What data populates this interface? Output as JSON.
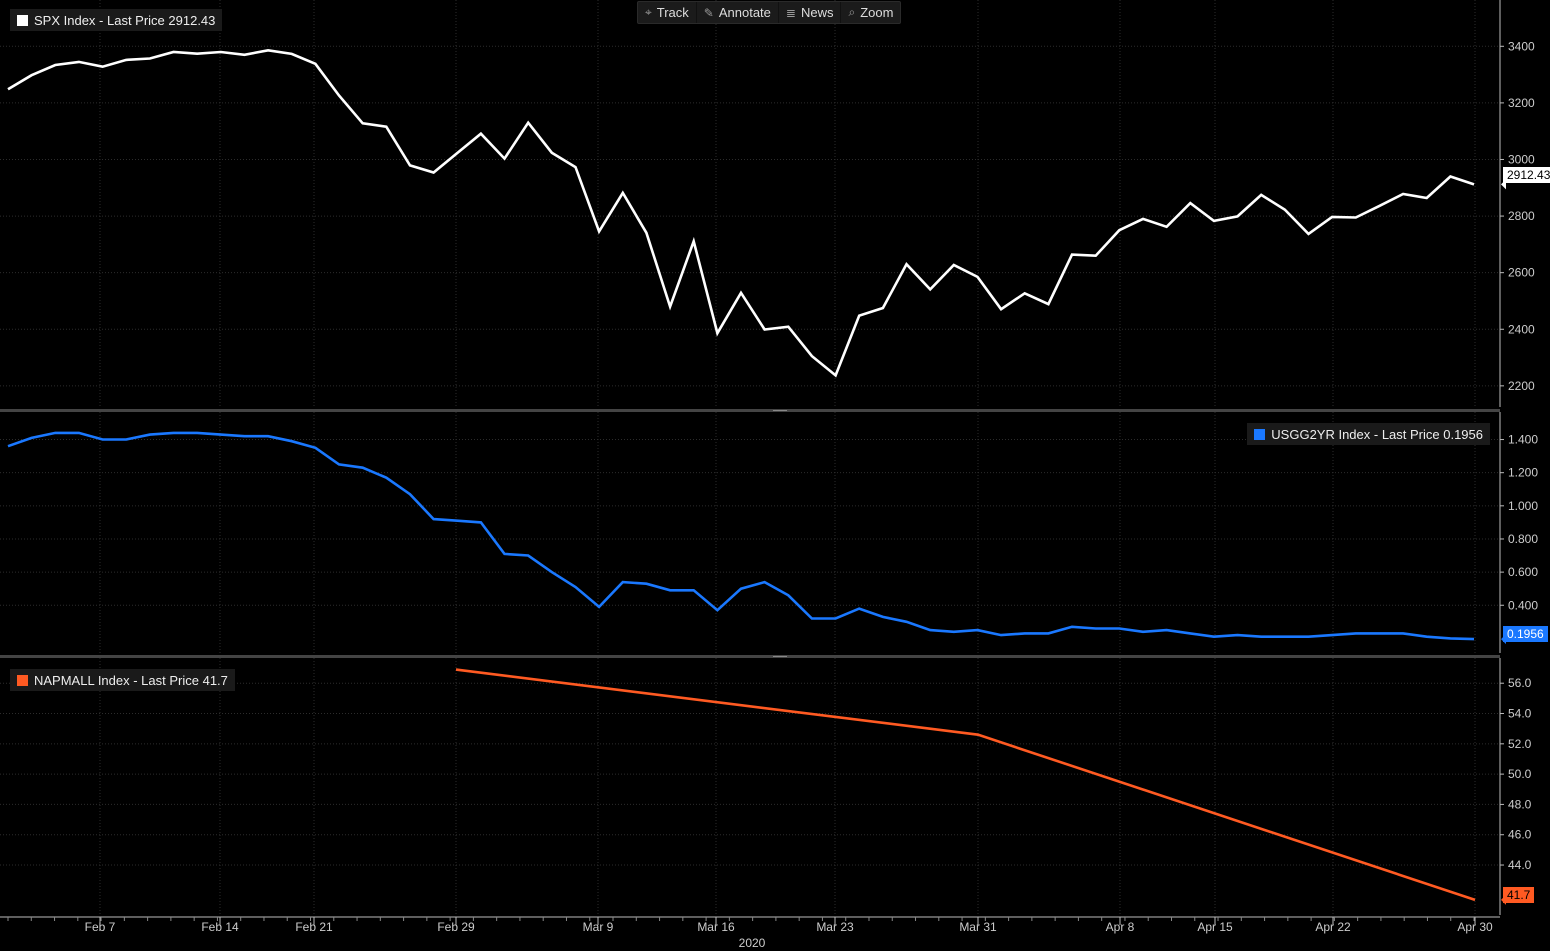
{
  "toolbar": {
    "items": [
      {
        "label": "Track",
        "icon": "crosshair-icon",
        "glyph": "⌖"
      },
      {
        "label": "Annotate",
        "icon": "pencil-icon",
        "glyph": "✎"
      },
      {
        "label": "News",
        "icon": "news-icon",
        "glyph": "≣"
      },
      {
        "label": "Zoom",
        "icon": "magnifier-icon",
        "glyph": "⌕"
      }
    ]
  },
  "x_axis": {
    "ticks": [
      "Feb 7",
      "Feb 14",
      "Feb 21",
      "Feb 29",
      "Mar 9",
      "Mar 16",
      "Mar 23",
      "Mar 31",
      "Apr 8",
      "Apr 15",
      "Apr 22",
      "Apr 30"
    ],
    "year_label": "2020"
  },
  "colors": {
    "background": "#000000",
    "spx": "#ffffff",
    "usgg2yr": "#1a78ff",
    "napmall": "#ff5a22",
    "axis_text": "#cccccc"
  },
  "chart_data": [
    {
      "type": "line",
      "legend": "SPX Index - Last Price 2912.43",
      "last_value_tag": "2912.43",
      "ylim": [
        2150,
        3500
      ],
      "yticks": [
        "2200",
        "2400",
        "2600",
        "2800",
        "3000",
        "3200",
        "3400"
      ],
      "series": [
        {
          "name": "SPX Index",
          "values": [
            3248,
            3298,
            3334,
            3345,
            3328,
            3352,
            3357,
            3380,
            3374,
            3380,
            3370,
            3386,
            3373,
            3338,
            3226,
            3128,
            3116,
            2979,
            2954,
            3023,
            3091,
            3003,
            3130,
            3024,
            2973,
            2746,
            2882,
            2741,
            2480,
            2711,
            2386,
            2529,
            2399,
            2409,
            2305,
            2237,
            2448,
            2475,
            2630,
            2541,
            2627,
            2585,
            2471,
            2527,
            2489,
            2664,
            2660,
            2750,
            2790,
            2762,
            2846,
            2783,
            2799,
            2875,
            2823,
            2737,
            2797,
            2795,
            2836,
            2878,
            2864,
            2940,
            2912
          ]
        }
      ]
    },
    {
      "type": "line",
      "legend": "USGG2YR Index - Last Price 0.1956",
      "last_value_tag": "0.1956",
      "ylim": [
        0.13,
        1.53
      ],
      "yticks": [
        "0.400",
        "0.600",
        "0.800",
        "1.000",
        "1.200",
        "1.400"
      ],
      "series": [
        {
          "name": "USGG2YR Index",
          "values": [
            1.36,
            1.41,
            1.44,
            1.44,
            1.4,
            1.4,
            1.43,
            1.44,
            1.44,
            1.43,
            1.42,
            1.42,
            1.39,
            1.35,
            1.25,
            1.23,
            1.17,
            1.07,
            0.92,
            0.91,
            0.9,
            0.71,
            0.7,
            0.6,
            0.51,
            0.39,
            0.54,
            0.53,
            0.49,
            0.49,
            0.37,
            0.5,
            0.54,
            0.46,
            0.32,
            0.32,
            0.38,
            0.33,
            0.3,
            0.25,
            0.24,
            0.25,
            0.22,
            0.23,
            0.23,
            0.27,
            0.26,
            0.26,
            0.24,
            0.25,
            0.23,
            0.21,
            0.22,
            0.21,
            0.21,
            0.21,
            0.22,
            0.23,
            0.23,
            0.23,
            0.21,
            0.2,
            0.1956
          ]
        }
      ]
    },
    {
      "type": "line",
      "legend": "NAPMALL Index - Last Price 41.7",
      "last_value_tag": "41.7",
      "ylim": [
        40.9,
        57.4
      ],
      "yticks": [
        "44.0",
        "46.0",
        "48.0",
        "50.0",
        "52.0",
        "54.0",
        "56.0"
      ],
      "series": [
        {
          "name": "NAPMALL Index",
          "dates": [
            "Feb 29",
            "Mar 31",
            "Apr 30"
          ],
          "values": [
            56.9,
            52.6,
            41.7
          ]
        }
      ]
    }
  ]
}
